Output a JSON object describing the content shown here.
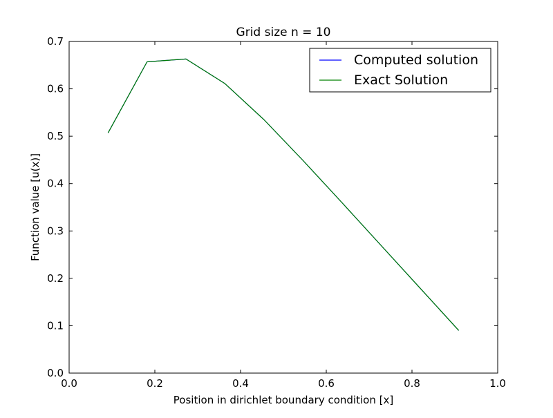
{
  "chart_data": {
    "type": "line",
    "title": "Grid size n = 10",
    "xlabel": "Position in dirichlet boundary condition [x]",
    "ylabel": "Function value [u(x)]",
    "xlim": [
      0.0,
      1.0
    ],
    "ylim": [
      0.0,
      0.7
    ],
    "xticks": [
      "0.0",
      "0.2",
      "0.4",
      "0.6",
      "0.8",
      "1.0"
    ],
    "yticks": [
      "0.0",
      "0.1",
      "0.2",
      "0.3",
      "0.4",
      "0.5",
      "0.6",
      "0.7"
    ],
    "grid": false,
    "legend_position": "top-right",
    "x": [
      0.0909,
      0.1818,
      0.2727,
      0.3636,
      0.4545,
      0.5455,
      0.6364,
      0.7273,
      0.8182,
      0.9091
    ],
    "series": [
      {
        "name": "Computed solution",
        "color": "#0000ff",
        "values": [
          0.507,
          0.657,
          0.663,
          0.611,
          0.535,
          0.449,
          0.36,
          0.27,
          0.18,
          0.09
        ]
      },
      {
        "name": "Exact Solution",
        "color": "#008000",
        "values": [
          0.507,
          0.657,
          0.663,
          0.611,
          0.535,
          0.449,
          0.36,
          0.27,
          0.18,
          0.09
        ]
      }
    ]
  }
}
